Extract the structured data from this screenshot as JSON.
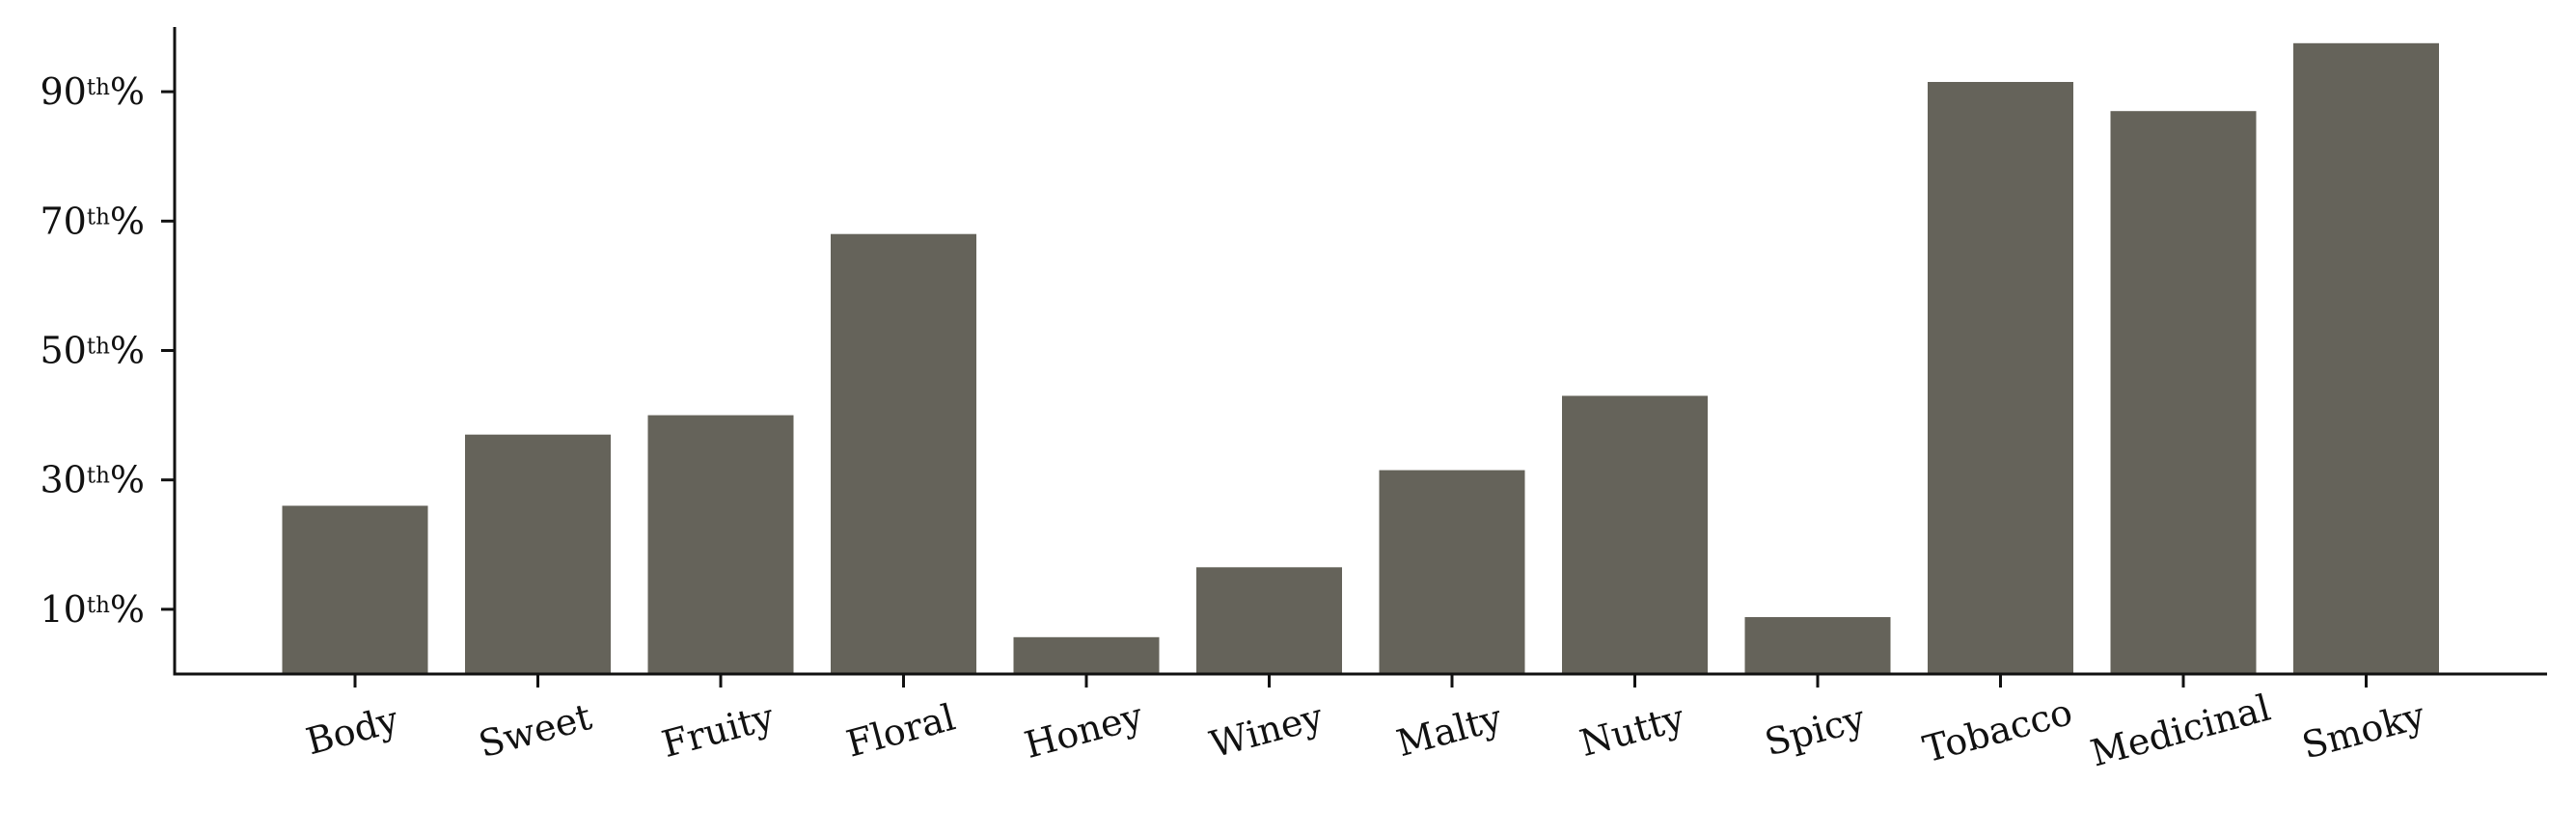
{
  "chart_data": {
    "type": "bar",
    "categories": [
      "Body",
      "Sweet",
      "Fruity",
      "Floral",
      "Honey",
      "Winey",
      "Malty",
      "Nutty",
      "Spicy",
      "Tobacco",
      "Medicinal",
      "Smoky"
    ],
    "values": [
      26,
      37,
      40,
      68,
      5.7,
      16.5,
      31.5,
      43,
      8.8,
      91.5,
      87,
      97.5
    ],
    "ylim": [
      0,
      100
    ],
    "yticks": [
      {
        "value": 10,
        "number": "10",
        "sup": "th",
        "suffix": "%"
      },
      {
        "value": 30,
        "number": "30",
        "sup": "th",
        "suffix": "%"
      },
      {
        "value": 50,
        "number": "50",
        "sup": "th",
        "suffix": "%"
      },
      {
        "value": 70,
        "number": "70",
        "sup": "th",
        "suffix": "%"
      },
      {
        "value": 90,
        "number": "90",
        "sup": "th",
        "suffix": "%"
      }
    ],
    "bar_color": "#65635a",
    "axis_color": "#111111",
    "grid": false,
    "xlabel_rotation": "slanted"
  }
}
